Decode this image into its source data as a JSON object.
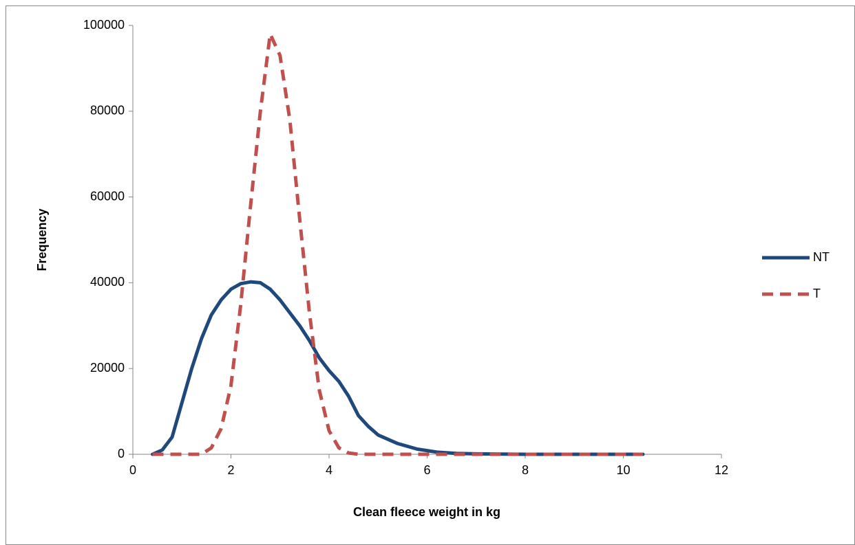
{
  "chart_data": {
    "type": "line",
    "x_label": "Clean fleece weight in kg",
    "y_label": "Frequency",
    "xlim": [
      0,
      12
    ],
    "xticks": [
      0,
      2,
      4,
      6,
      8,
      10,
      12
    ],
    "ylim": [
      0,
      100000
    ],
    "yticks": [
      0,
      20000,
      40000,
      60000,
      80000,
      100000
    ],
    "legend": "right",
    "series": [
      {
        "name": "NT",
        "color": "#1f497d",
        "dashed": false,
        "x": [
          0.4,
          0.6,
          0.8,
          1.0,
          1.2,
          1.4,
          1.6,
          1.8,
          2.0,
          2.2,
          2.4,
          2.6,
          2.8,
          3.0,
          3.2,
          3.4,
          3.6,
          3.8,
          4.0,
          4.2,
          4.4,
          4.6,
          4.8,
          5.0,
          5.4,
          5.8,
          6.2,
          6.6,
          7.0,
          8.0,
          9.0,
          10.4
        ],
        "values": [
          0,
          1000,
          4000,
          12000,
          20000,
          27000,
          32500,
          36000,
          38500,
          39800,
          40200,
          40000,
          38500,
          36000,
          33000,
          30000,
          26500,
          22500,
          19500,
          17000,
          13500,
          9000,
          6500,
          4500,
          2500,
          1200,
          500,
          200,
          100,
          0,
          0,
          0
        ]
      },
      {
        "name": "T",
        "color": "#c0504d",
        "dashed": true,
        "x": [
          0.4,
          1.0,
          1.4,
          1.6,
          1.8,
          2.0,
          2.2,
          2.4,
          2.6,
          2.8,
          3.0,
          3.2,
          3.4,
          3.6,
          3.8,
          4.0,
          4.2,
          4.4,
          4.6,
          6.0,
          8.0,
          10.4
        ],
        "values": [
          0,
          0,
          0,
          1500,
          6000,
          16000,
          35000,
          58000,
          80000,
          98000,
          93000,
          78000,
          55000,
          33000,
          15000,
          5500,
          1500,
          300,
          0,
          0,
          0,
          0
        ]
      }
    ]
  }
}
